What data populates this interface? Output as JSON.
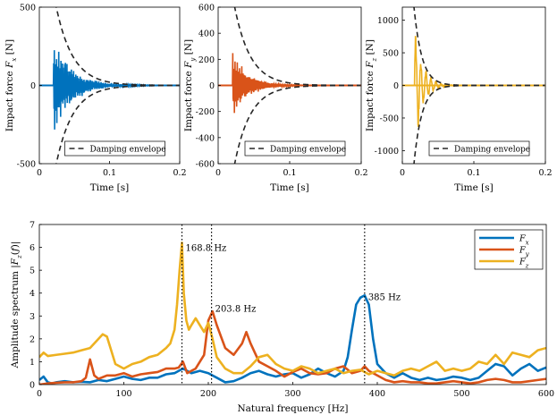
{
  "chart_data": {
    "type": "line",
    "colors": {
      "fx": "#0072BD",
      "fy": "#D95319",
      "fz": "#EDB120",
      "envelope": "#262626",
      "axis": "#000000"
    },
    "time_panels": [
      {
        "key": "fx",
        "ylabel": "Impact force F_x [N]",
        "xlabel": "Time [s]",
        "xlim": [
          0,
          0.2
        ],
        "ylim": [
          -500,
          500
        ],
        "xticks": [
          "0",
          "0.1",
          "0.2"
        ],
        "yticks": [
          {
            "v": 500,
            "label": "500"
          },
          {
            "v": 0,
            "label": "0"
          },
          {
            "v": -500,
            "label": "-500"
          }
        ],
        "series_name": "F_x",
        "signal": {
          "t0": 0.02,
          "amp": 330,
          "decay": 38,
          "freq": 385,
          "t_end": 0.2
        },
        "envelope": {
          "amp": 1380,
          "decay": 42,
          "t_start": 0.0
        },
        "legend": {
          "label": "Damping envelope",
          "position": "bottom-center"
        }
      },
      {
        "key": "fy",
        "ylabel": "Impact force F_y [N]",
        "xlabel": "Time [s]",
        "xlim": [
          0,
          0.2
        ],
        "ylim": [
          -600,
          600
        ],
        "xticks": [
          "0",
          "0.1",
          "0.2"
        ],
        "yticks": [
          {
            "v": 600,
            "label": "600"
          },
          {
            "v": 400,
            "label": "400"
          },
          {
            "v": 200,
            "label": "200"
          },
          {
            "v": 0,
            "label": "0"
          },
          {
            "v": -200,
            "label": "-200"
          },
          {
            "v": -400,
            "label": "-400"
          },
          {
            "v": -600,
            "label": "-600"
          }
        ],
        "series_name": "F_y",
        "signal": {
          "t0": 0.02,
          "amp": 280,
          "decay": 48,
          "freq": 203.8,
          "t_end": 0.2
        },
        "envelope": {
          "amp": 1700,
          "decay": 45,
          "t_start": 0.0
        },
        "legend": {
          "label": "Damping envelope",
          "position": "bottom-center"
        }
      },
      {
        "key": "fz",
        "ylabel": "Impact force F_z [N]",
        "xlabel": "Time [s]",
        "xlim": [
          0,
          0.2
        ],
        "ylim": [
          -1200,
          1200
        ],
        "xticks": [
          "0",
          "0.1",
          "0.2"
        ],
        "yticks": [
          {
            "v": 1000,
            "label": "1000"
          },
          {
            "v": 500,
            "label": "500"
          },
          {
            "v": 0,
            "label": "0"
          },
          {
            "v": -500,
            "label": "-500"
          },
          {
            "v": -1000,
            "label": "-1000"
          }
        ],
        "series_name": "F_z",
        "signal": {
          "t0": 0.017,
          "amp": 1050,
          "decay": 90,
          "freq": 168.8,
          "t_end": 0.2
        },
        "envelope": {
          "amp": 5200,
          "decay": 90,
          "t_start": 0.0
        },
        "legend": {
          "label": "Damping envelope",
          "position": "bottom-center"
        }
      }
    ],
    "spectrum": {
      "ylabel": "Amplitude spectrum |F_z(f)|",
      "xlabel": "Natural frequency [Hz]",
      "xlim": [
        0,
        600
      ],
      "ylim": [
        0,
        7
      ],
      "xticks": [
        0,
        100,
        200,
        300,
        400,
        500,
        600
      ],
      "yticks": [
        0,
        1,
        2,
        3,
        4,
        5,
        6,
        7
      ],
      "legend": [
        "F_x",
        "F_y",
        "F_z"
      ],
      "legend_position": "top-right",
      "peaks": [
        {
          "freq": 168.8,
          "label": "168.8 Hz",
          "label_y": 6.0
        },
        {
          "freq": 203.8,
          "label": "203.8 Hz",
          "label_y": 3.35
        },
        {
          "freq": 385,
          "label": "385 Hz",
          "label_y": 3.85
        }
      ],
      "series": [
        {
          "name": "F_x",
          "key": "fx",
          "x": [
            0,
            5,
            10,
            15,
            20,
            30,
            40,
            50,
            60,
            70,
            80,
            90,
            100,
            110,
            120,
            130,
            140,
            150,
            160,
            165,
            170,
            175,
            180,
            190,
            200,
            210,
            220,
            230,
            240,
            250,
            260,
            270,
            280,
            290,
            300,
            310,
            320,
            330,
            340,
            350,
            360,
            365,
            370,
            375,
            380,
            385,
            390,
            395,
            400,
            410,
            420,
            430,
            440,
            450,
            460,
            470,
            480,
            490,
            500,
            510,
            520,
            530,
            540,
            550,
            560,
            570,
            580,
            590,
            600
          ],
          "y": [
            0.2,
            0.35,
            0.1,
            0.05,
            0.1,
            0.15,
            0.1,
            0.12,
            0.1,
            0.2,
            0.15,
            0.25,
            0.35,
            0.25,
            0.2,
            0.3,
            0.3,
            0.45,
            0.5,
            0.6,
            0.7,
            0.6,
            0.5,
            0.6,
            0.5,
            0.3,
            0.1,
            0.15,
            0.3,
            0.5,
            0.6,
            0.45,
            0.35,
            0.45,
            0.5,
            0.3,
            0.45,
            0.7,
            0.5,
            0.35,
            0.6,
            1.2,
            2.4,
            3.5,
            3.8,
            3.9,
            3.5,
            2.0,
            0.9,
            0.5,
            0.3,
            0.5,
            0.3,
            0.2,
            0.3,
            0.2,
            0.25,
            0.35,
            0.3,
            0.2,
            0.3,
            0.6,
            0.9,
            0.8,
            0.4,
            0.7,
            0.9,
            0.6,
            0.75
          ]
        },
        {
          "name": "F_y",
          "key": "fy",
          "x": [
            0,
            10,
            20,
            30,
            40,
            50,
            55,
            60,
            65,
            70,
            80,
            90,
            100,
            110,
            120,
            130,
            140,
            150,
            160,
            165,
            170,
            175,
            180,
            185,
            190,
            195,
            200,
            205,
            210,
            220,
            230,
            240,
            245,
            250,
            260,
            270,
            280,
            290,
            300,
            310,
            320,
            330,
            340,
            350,
            360,
            370,
            380,
            385,
            390,
            400,
            410,
            420,
            430,
            440,
            450,
            460,
            470,
            480,
            490,
            500,
            510,
            520,
            530,
            540,
            550,
            560,
            570,
            580,
            590,
            600
          ],
          "y": [
            0.0,
            0.05,
            0.08,
            0.1,
            0.1,
            0.15,
            0.3,
            1.1,
            0.4,
            0.25,
            0.4,
            0.4,
            0.5,
            0.35,
            0.45,
            0.5,
            0.55,
            0.7,
            0.7,
            0.75,
            1.0,
            0.5,
            0.6,
            0.7,
            1.0,
            1.3,
            2.8,
            3.2,
            2.6,
            1.6,
            1.3,
            1.8,
            2.3,
            1.8,
            1.0,
            0.8,
            0.6,
            0.35,
            0.55,
            0.7,
            0.5,
            0.45,
            0.5,
            0.7,
            0.8,
            0.5,
            0.6,
            0.8,
            0.6,
            0.4,
            0.2,
            0.1,
            0.15,
            0.1,
            0.1,
            0.05,
            0.05,
            0.1,
            0.15,
            0.1,
            0.05,
            0.1,
            0.2,
            0.25,
            0.2,
            0.1,
            0.1,
            0.15,
            0.2,
            0.25
          ]
        },
        {
          "name": "F_z",
          "key": "fz",
          "x": [
            0,
            5,
            10,
            20,
            30,
            40,
            50,
            60,
            70,
            75,
            80,
            85,
            90,
            100,
            110,
            120,
            130,
            140,
            150,
            155,
            160,
            163,
            166,
            168.8,
            171,
            174,
            177,
            180,
            185,
            190,
            195,
            200,
            205,
            210,
            220,
            230,
            240,
            250,
            260,
            270,
            280,
            290,
            300,
            310,
            320,
            330,
            340,
            350,
            360,
            370,
            380,
            390,
            400,
            410,
            420,
            430,
            440,
            450,
            460,
            470,
            480,
            490,
            500,
            510,
            520,
            530,
            540,
            550,
            560,
            570,
            580,
            590,
            600
          ],
          "y": [
            1.2,
            1.4,
            1.25,
            1.3,
            1.35,
            1.4,
            1.5,
            1.6,
            2.0,
            2.2,
            2.1,
            1.5,
            0.9,
            0.7,
            0.9,
            1.0,
            1.2,
            1.3,
            1.6,
            1.8,
            2.4,
            3.5,
            5.0,
            6.2,
            4.0,
            2.8,
            2.4,
            2.6,
            2.9,
            2.6,
            2.3,
            2.7,
            2.0,
            1.2,
            0.7,
            0.5,
            0.5,
            0.8,
            1.2,
            1.3,
            0.9,
            0.7,
            0.6,
            0.8,
            0.7,
            0.5,
            0.6,
            0.7,
            0.5,
            0.6,
            0.65,
            0.45,
            0.6,
            0.5,
            0.4,
            0.6,
            0.7,
            0.6,
            0.8,
            1.0,
            0.6,
            0.7,
            0.6,
            0.7,
            1.0,
            0.9,
            1.3,
            0.9,
            1.4,
            1.3,
            1.2,
            1.5,
            1.6
          ]
        }
      ]
    }
  }
}
